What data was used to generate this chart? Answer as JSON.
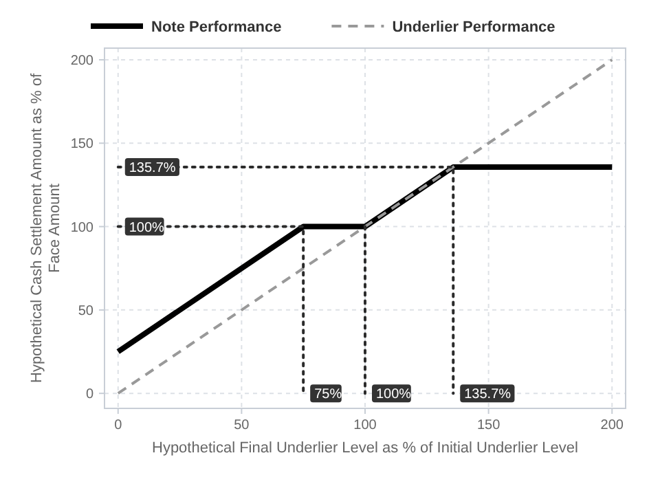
{
  "chart_data": {
    "type": "line",
    "xlabel": "Hypothetical Final Underlier Level as % of Initial Underlier Level",
    "ylabel": "Hypothetical Cash Settlement Amount as % of Face Amount",
    "xlim": [
      -5.5,
      205.5
    ],
    "ylim": [
      -9,
      207
    ],
    "xticks": [
      0,
      50,
      100,
      150,
      200
    ],
    "yticks": [
      0,
      50,
      100,
      150,
      200
    ],
    "grid": true,
    "legend": "top left",
    "series": [
      {
        "name": "Note Performance",
        "color": "#000000",
        "line_style": "solid",
        "x": [
          0,
          75,
          100,
          135.7,
          200
        ],
        "values": [
          25,
          100,
          100,
          135.7,
          135.7
        ]
      },
      {
        "name": "Underlier Performance",
        "color": "#999999",
        "line_style": "dashed",
        "x": [
          0,
          200
        ],
        "values": [
          0,
          200
        ]
      },
      {
        "color": "#2b2b2b",
        "line_style": "dotted",
        "x": [
          0,
          135.7,
          135.7
        ],
        "values": [
          135.7,
          135.7,
          0
        ]
      },
      {
        "color": "#2b2b2b",
        "line_style": "dotted",
        "x": [
          0,
          75,
          75
        ],
        "values": [
          100,
          100,
          0
        ]
      },
      {
        "color": "#2b2b2b",
        "line_style": "dotted",
        "x": [
          100,
          100
        ],
        "values": [
          100,
          0
        ]
      }
    ],
    "annotations": [
      {
        "text": "135.7%",
        "x": 0,
        "y": 135.7
      },
      {
        "text": "100%",
        "x": 0,
        "y": 100
      },
      {
        "text": "75%",
        "x": 75,
        "y": 0
      },
      {
        "text": "100%",
        "x": 100,
        "y": 0
      },
      {
        "text": "135.7%",
        "x": 135.7,
        "y": 0
      }
    ]
  }
}
